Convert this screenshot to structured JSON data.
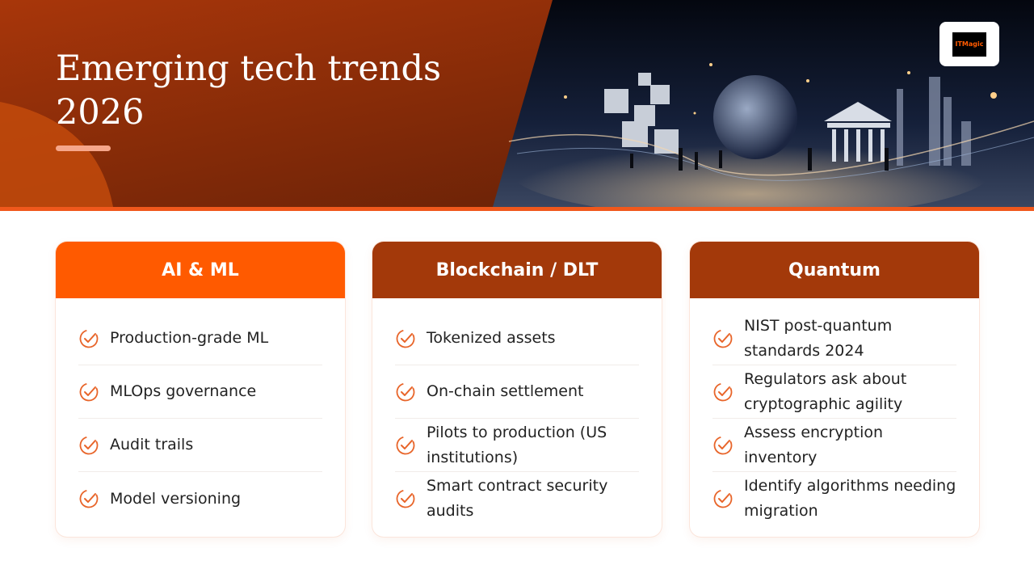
{
  "header": {
    "title": "Emerging tech trends 2026",
    "logo": "ITMagic"
  },
  "cards": [
    {
      "title": "AI & ML",
      "items": [
        "Production-grade ML",
        "MLOps governance",
        "Audit trails",
        "Model versioning"
      ]
    },
    {
      "title": "Blockchain / DLT",
      "items": [
        "Tokenized assets",
        "On-chain settlement",
        "Pilots to production (US institutions)",
        "Smart contract security audits"
      ]
    },
    {
      "title": "Quantum",
      "items": [
        "NIST post-quantum standards 2024",
        "Regulators ask about cryptographic agility",
        "Assess encryption inventory",
        "Identify algorithms needing migration"
      ]
    }
  ]
}
